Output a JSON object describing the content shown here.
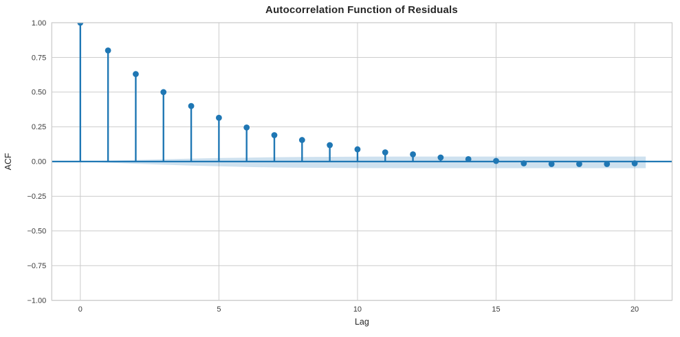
{
  "chart_data": {
    "type": "stem",
    "title": "Autocorrelation Function of Residuals",
    "xlabel": "Lag",
    "ylabel": "ACF",
    "x": [
      0,
      1,
      2,
      3,
      4,
      5,
      6,
      7,
      8,
      9,
      10,
      11,
      12,
      13,
      14,
      15,
      16,
      17,
      18,
      19,
      20
    ],
    "values": [
      1.0,
      0.8,
      0.63,
      0.5,
      0.4,
      0.315,
      0.245,
      0.19,
      0.155,
      0.118,
      0.088,
      0.066,
      0.052,
      0.029,
      0.017,
      0.004,
      -0.013,
      -0.018,
      -0.018,
      -0.018,
      -0.013
    ],
    "xlim": [
      -1.03,
      21.35
    ],
    "ylim": [
      -1.0,
      1.0
    ],
    "grid": true,
    "legend": "none",
    "xticks": {
      "values": [
        0,
        5,
        10,
        15,
        20
      ],
      "labels": [
        "0",
        "5",
        "10",
        "15",
        "20"
      ]
    },
    "yticks": {
      "values": [
        1.0,
        0.75,
        0.5,
        0.25,
        0.0,
        -0.25,
        -0.5,
        -0.75,
        -1.0
      ],
      "labels": [
        "1.00",
        "0.75",
        "0.50",
        "0.25",
        "0.00",
        "−0.25",
        "−0.50",
        "−0.75",
        "−1.00"
      ]
    },
    "confidence_band": {
      "x": [
        0.5,
        1,
        2,
        3,
        4,
        5,
        6,
        7,
        8,
        10,
        12,
        20.4
      ],
      "upper": [
        0.003,
        0.006,
        0.011,
        0.016,
        0.021,
        0.025,
        0.028,
        0.031,
        0.033,
        0.035,
        0.036,
        0.036
      ],
      "lower": [
        -0.005,
        -0.009,
        -0.016,
        -0.023,
        -0.029,
        -0.034,
        -0.039,
        -0.043,
        -0.045,
        -0.047,
        -0.048,
        -0.048
      ]
    },
    "colors": {
      "stem": "#1f77b4",
      "marker": "#1f77b4",
      "zero_line": "#1f77b4",
      "band": "#1f77b4",
      "band_opacity": 0.22,
      "grid": "#cccccc",
      "spine": "#c9c9c9",
      "title_text": "#262626",
      "tick_text": "#3a3a3a"
    }
  }
}
